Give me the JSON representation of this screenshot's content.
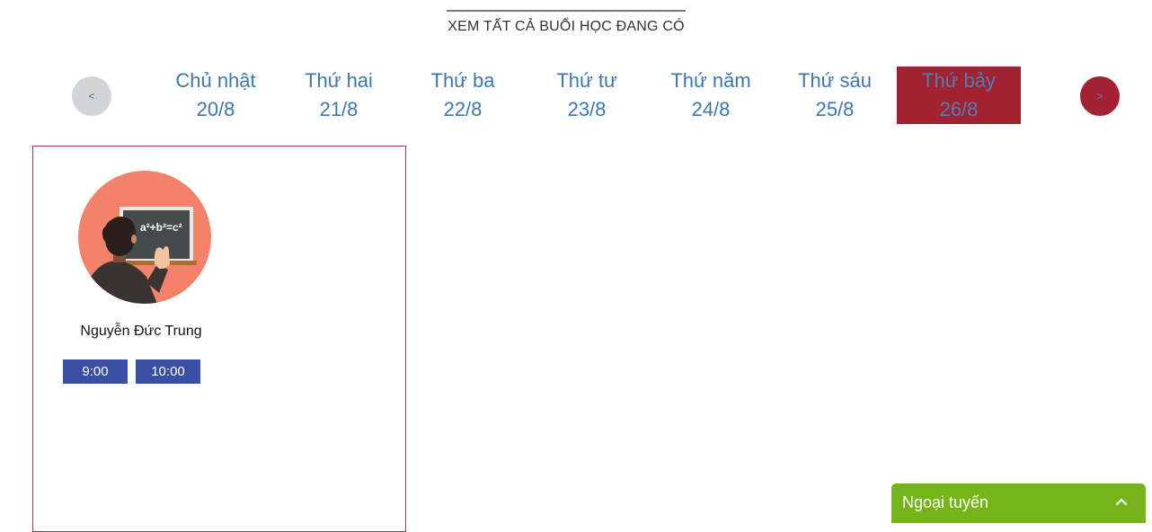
{
  "header": {
    "title": "XEM TẤT CẢ BUỔI HỌC ĐANG CÓ"
  },
  "day_nav": {
    "prev_label": "<",
    "next_label": ">",
    "days": [
      {
        "name": "Chủ nhật",
        "date": "20/8",
        "active": false
      },
      {
        "name": "Thứ hai",
        "date": "21/8",
        "active": false
      },
      {
        "name": "Thứ ba",
        "date": "22/8",
        "active": false
      },
      {
        "name": "Thứ tư",
        "date": "23/8",
        "active": false
      },
      {
        "name": "Thứ năm",
        "date": "24/8",
        "active": false
      },
      {
        "name": "Thứ sáu",
        "date": "25/8",
        "active": false
      },
      {
        "name": "Thứ bảy",
        "date": "26/8",
        "active": true
      }
    ]
  },
  "teacher": {
    "name": "Nguyễn Đức Trung",
    "avatar_icon": "teacher-at-chalkboard",
    "board_formula": "a²+b²=c²",
    "times": [
      "9:00",
      "10:00"
    ]
  },
  "chat": {
    "status": "Ngoại tuyến",
    "icon": "chevron-up-icon"
  },
  "colors": {
    "link_blue": "#3a78b4",
    "active_red": "#a32232",
    "time_button": "#3a4fa3",
    "chat_green": "#76b51a",
    "avatar_bg": "#f2826a"
  }
}
